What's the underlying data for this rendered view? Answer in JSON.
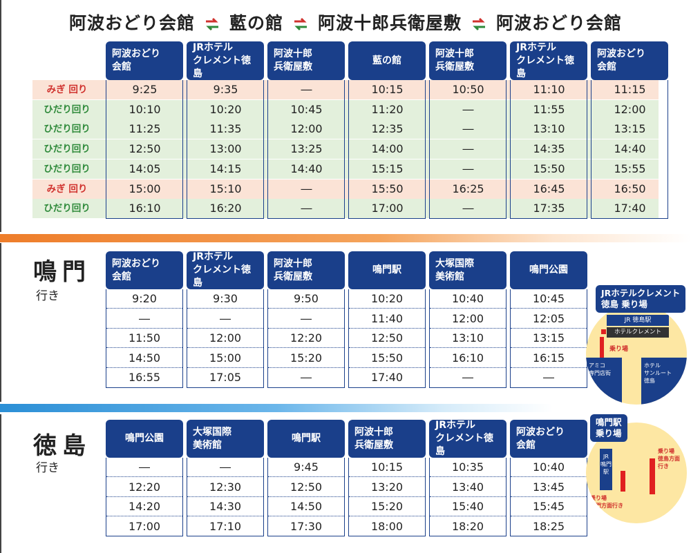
{
  "title": {
    "part1": "阿波おどり会館",
    "part2": "藍の館",
    "part3": "阿波十郎兵衛屋敷",
    "part4": "阿波おどり会館"
  },
  "loop": {
    "headers": [
      "阿波おどり\n会館",
      "JRホテル\nクレメント徳島",
      "阿波十郎\n兵衛屋敷",
      "藍の館",
      "阿波十郎\n兵衛屋敷",
      "JRホテル\nクレメント徳島",
      "阿波おどり\n会館"
    ],
    "rows": [
      {
        "label": "みぎ 回り",
        "kind": "r",
        "times": [
          "9:25",
          "9:35",
          "―",
          "10:15",
          "10:50",
          "11:10",
          "11:15"
        ]
      },
      {
        "label": "ひだり回り",
        "kind": "g",
        "times": [
          "10:10",
          "10:20",
          "10:45",
          "11:20",
          "―",
          "11:55",
          "12:00"
        ]
      },
      {
        "label": "ひだり回り",
        "kind": "g",
        "times": [
          "11:25",
          "11:35",
          "12:00",
          "12:35",
          "―",
          "13:10",
          "13:15"
        ]
      },
      {
        "label": "ひだり回り",
        "kind": "g",
        "times": [
          "12:50",
          "13:00",
          "13:25",
          "14:00",
          "―",
          "14:35",
          "14:40"
        ]
      },
      {
        "label": "ひだり回り",
        "kind": "g",
        "times": [
          "14:05",
          "14:15",
          "14:40",
          "15:15",
          "―",
          "15:50",
          "15:55"
        ]
      },
      {
        "label": "みぎ 回り",
        "kind": "r",
        "times": [
          "15:00",
          "15:10",
          "―",
          "15:50",
          "16:25",
          "16:45",
          "16:50"
        ]
      },
      {
        "label": "ひだり回り",
        "kind": "g",
        "times": [
          "16:10",
          "16:20",
          "―",
          "17:00",
          "―",
          "17:35",
          "17:40"
        ]
      }
    ]
  },
  "naruto": {
    "title": "鳴門",
    "sub": "行き",
    "headers": [
      "阿波おどり\n会館",
      "JRホテル\nクレメント徳島",
      "阿波十郎\n兵衛屋敷",
      "鳴門駅",
      "大塚国際\n美術館",
      "鳴門公園"
    ],
    "columns": [
      [
        "9:20",
        "―",
        "11:50",
        "14:50",
        "16:55"
      ],
      [
        "9:30",
        "―",
        "12:00",
        "15:00",
        "17:05"
      ],
      [
        "9:50",
        "―",
        "12:20",
        "15:20",
        "―"
      ],
      [
        "10:20",
        "11:40",
        "12:50",
        "15:50",
        "17:40"
      ],
      [
        "10:40",
        "12:00",
        "13:10",
        "16:10",
        "―"
      ],
      [
        "10:45",
        "12:05",
        "13:15",
        "16:15",
        "―"
      ]
    ]
  },
  "tokushima": {
    "title": "徳島",
    "sub": "行き",
    "headers": [
      "鳴門公園",
      "大塚国際\n美術館",
      "鳴門駅",
      "阿波十郎\n兵衛屋敷",
      "JRホテル\nクレメント徳島",
      "阿波おどり\n会館"
    ],
    "columns": [
      [
        "―",
        "12:20",
        "14:20",
        "17:00"
      ],
      [
        "―",
        "12:30",
        "14:30",
        "17:10"
      ],
      [
        "9:45",
        "12:50",
        "14:50",
        "17:30"
      ],
      [
        "10:15",
        "13:20",
        "15:20",
        "18:00"
      ],
      [
        "10:35",
        "13:40",
        "15:40",
        "18:20"
      ],
      [
        "10:40",
        "13:45",
        "15:45",
        "18:25"
      ]
    ]
  },
  "map1": {
    "tag": "JRホテルクレメント\n徳島 乗り場",
    "station": "JR 徳島駅",
    "hotel": "ホテルクレメント",
    "stop": "乗り場",
    "left_block": "アミコ\n専門店街",
    "right_block": "ホテル\nサンルート\n徳島"
  },
  "map2": {
    "tag": "鳴門駅\n乗り場",
    "station": "JR\n鳴門\n駅",
    "stop_right": "乗り場\n徳島方面\n行き",
    "stop_left": "乗り場\n鳴門方面行き"
  },
  "colors": {
    "navy": "#1a3f8a",
    "red": "#d0312d",
    "green": "#2e8a3a",
    "orange": "#ee7d2a",
    "blue": "#2b8fd6"
  }
}
